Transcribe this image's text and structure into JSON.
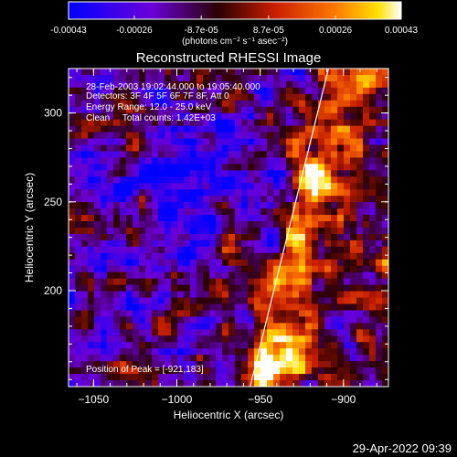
{
  "colorbar": {
    "tick_labels": [
      "-0.00043",
      "-0.00026",
      "-8.7e-05",
      "8.7e-05",
      "0.00026",
      "0.00043"
    ],
    "tick_values": [
      -0.00043,
      -0.00026,
      -8.7e-05,
      8.7e-05,
      0.00026,
      0.00043
    ],
    "unit_label": "(photons cm⁻² s⁻¹ asec⁻²)",
    "colors": [
      "#0000ff",
      "#6a00d8",
      "#2a0000",
      "#c81e00",
      "#ff7800",
      "#ffffff"
    ]
  },
  "title": "Reconstructed RHESSI Image",
  "info_lines": [
    "28-Feb-2003 19:02:44.000 to 19:05:40.000",
    "Detectors: 3F 4F 5F 6F 7F 8F, Att 0",
    "Energy Range: 12.0 - 25.0 keV",
    "Clean     Total counts: 1.42E+03"
  ],
  "peak_label": "Position of Peak = [-921,183]",
  "x_axis": {
    "label": "Heliocentric X (arcsec)",
    "range": [
      -1065,
      -873
    ],
    "ticks": [
      -1050,
      -1000,
      -950,
      -900
    ],
    "tick_labels": [
      "−1050",
      "−1000",
      "−950",
      "−900"
    ]
  },
  "y_axis": {
    "label": "Heliocentric Y (arcsec)",
    "range": [
      146,
      325
    ],
    "ticks": [
      200,
      250,
      300
    ],
    "tick_labels": [
      "200",
      "250",
      "300"
    ]
  },
  "limb_line": {
    "x_start": -956,
    "y_start": 146,
    "x_end": -909,
    "y_end": 325
  },
  "footer": {
    "timestamp": "29-Apr-2022 09:39"
  }
}
